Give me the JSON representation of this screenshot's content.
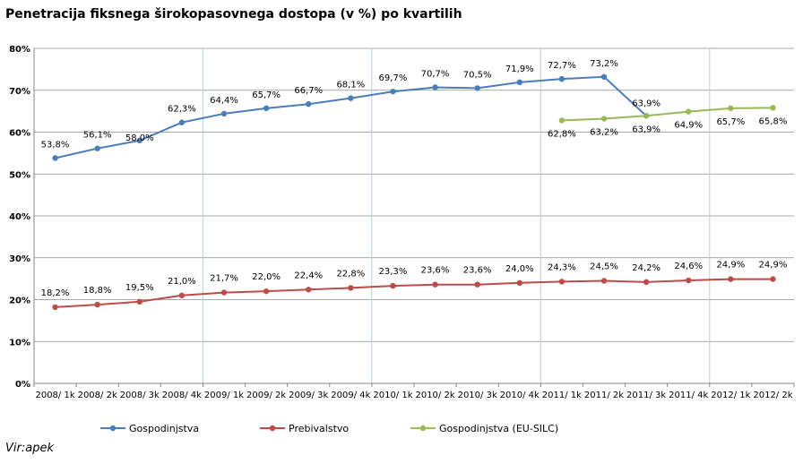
{
  "title": "Penetracija fiksnega širokopasovnega dostopa (v %) po kvartilih",
  "source": "Vir:apek",
  "chart_data": {
    "type": "line",
    "title": "Penetracija fiksnega širokopasovnega dostopa (v %) po kvartilih",
    "xlabel": "",
    "ylabel": "",
    "ylim": [
      0,
      80
    ],
    "yticks": [
      "0%",
      "10%",
      "20%",
      "30%",
      "40%",
      "50%",
      "60%",
      "70%",
      "80%"
    ],
    "grid": true,
    "legend_position": "bottom",
    "categories": [
      "2008 / 1k",
      "2008 / 2k",
      "2008 / 3k",
      "2008 / 4k",
      "2009 / 1k",
      "2009 / 2k",
      "2009 / 3k",
      "2009 / 4k",
      "2010 / 1k",
      "2010 / 2k",
      "2010 / 3k",
      "2010 / 4k",
      "2011 / 1k",
      "2011 / 2k",
      "2011 / 3k",
      "2011 / 4k",
      "2012 / 1k",
      "2012 / 2k"
    ],
    "category_labels": [
      "2008/ 1k",
      "2008/ 2k",
      "2008/ 3k",
      "2008/ 4k",
      "2009/ 1k",
      "2009/ 2k",
      "2009/ 3k",
      "2009/ 4k",
      "2010/ 1k",
      "2010/ 2k",
      "2010/ 3k",
      "2010/ 4k",
      "2011/ 1k",
      "2011/ 2k",
      "2011/ 3k",
      "2011/ 4k",
      "2012/ 1k",
      "2012/ 2k"
    ],
    "series": [
      {
        "name": "Gospodinjstva",
        "color": "#4a7ebb",
        "values": [
          53.8,
          56.1,
          58.0,
          62.3,
          64.4,
          65.7,
          66.7,
          68.1,
          69.7,
          70.7,
          70.5,
          71.9,
          72.7,
          73.2,
          63.9,
          null,
          null,
          null
        ],
        "labels": [
          "53,8%",
          "56,1%",
          "58,0%",
          "62,3%",
          "64,4%",
          "65,7%",
          "66,7%",
          "68,1%",
          "69,7%",
          "70,7%",
          "70,5%",
          "71,9%",
          "72,7%",
          "73,2%",
          "63,9%",
          null,
          null,
          null
        ]
      },
      {
        "name": "Prebivalstvo",
        "color": "#be4b48",
        "values": [
          18.2,
          18.8,
          19.5,
          21.0,
          21.7,
          22.0,
          22.4,
          22.8,
          23.3,
          23.6,
          23.6,
          24.0,
          24.3,
          24.5,
          24.2,
          24.6,
          24.9,
          24.9
        ],
        "labels": [
          "18,2%",
          "18,8%",
          "19,5%",
          "21,0%",
          "21,7%",
          "22,0%",
          "22,4%",
          "22,8%",
          "23,3%",
          "23,6%",
          "23,6%",
          "24,0%",
          "24,3%",
          "24,5%",
          "24,2%",
          "24,6%",
          "24,9%",
          "24,9%"
        ]
      },
      {
        "name": "Gospodinjstva (EU-SILC)",
        "color": "#98b954",
        "values": [
          null,
          null,
          null,
          null,
          null,
          null,
          null,
          null,
          null,
          null,
          null,
          null,
          62.8,
          63.2,
          63.9,
          64.9,
          65.7,
          65.8
        ],
        "labels": [
          null,
          null,
          null,
          null,
          null,
          null,
          null,
          null,
          null,
          null,
          null,
          null,
          "62,8%",
          "63,2%",
          "63,9%",
          "64,9%",
          "65,7%",
          "65,8%"
        ]
      }
    ]
  }
}
